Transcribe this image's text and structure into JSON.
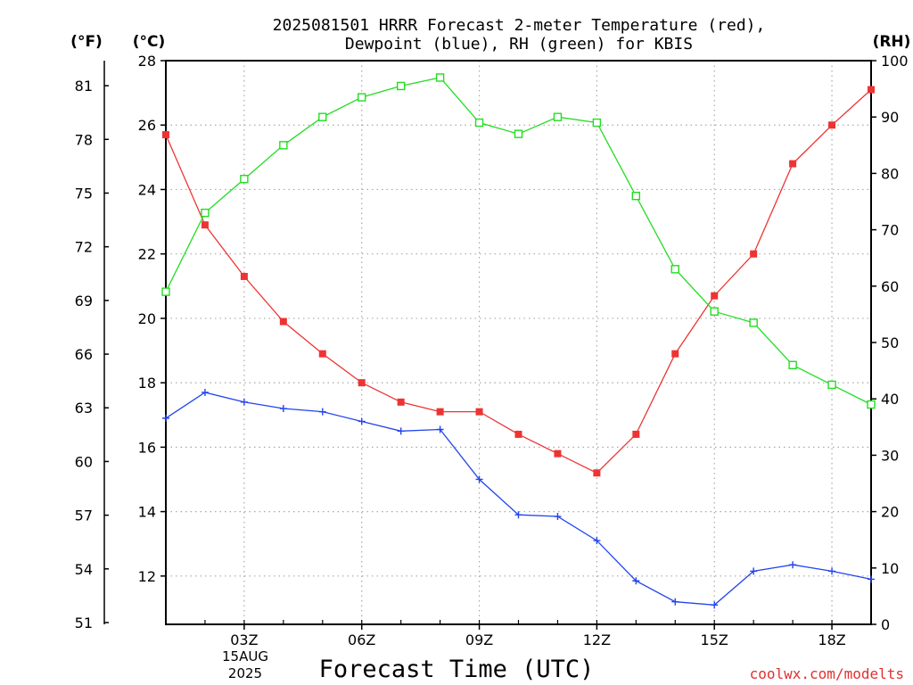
{
  "chart_data": {
    "type": "line",
    "title_lines": [
      "2025081501 HRRR Forecast 2-meter Temperature (red),",
      "Dewpoint (blue), RH (green) for KBIS"
    ],
    "xlabel": "Forecast Time (UTC)",
    "date_label": [
      "15AUG",
      "2025"
    ],
    "credit": "coolwx.com/modelts",
    "units": {
      "fahrenheit": "(°F)",
      "celsius": "(°C)",
      "rh": "(RH)"
    },
    "x_hours": [
      1,
      2,
      3,
      4,
      5,
      6,
      7,
      8,
      9,
      10,
      11,
      12,
      13,
      14,
      15,
      16,
      17,
      18,
      19
    ],
    "xlim": [
      1,
      19
    ],
    "x_ticks": [
      {
        "hour": 3,
        "label": "03Z"
      },
      {
        "hour": 6,
        "label": "06Z"
      },
      {
        "hour": 9,
        "label": "09Z"
      },
      {
        "hour": 12,
        "label": "12Z"
      },
      {
        "hour": 15,
        "label": "15Z"
      },
      {
        "hour": 18,
        "label": "18Z"
      }
    ],
    "celsius_axis": {
      "range": [
        10.5,
        28
      ],
      "ticks": [
        "12",
        "14",
        "16",
        "18",
        "20",
        "22",
        "24",
        "26",
        "28"
      ]
    },
    "fahrenheit_axis": {
      "ticks": [
        "51",
        "54",
        "57",
        "60",
        "63",
        "66",
        "69",
        "72",
        "75",
        "78",
        "81"
      ]
    },
    "rh_axis": {
      "range": [
        0,
        100
      ],
      "ticks": [
        "0",
        "10",
        "20",
        "30",
        "40",
        "50",
        "60",
        "70",
        "80",
        "90",
        "100"
      ]
    },
    "grid": true,
    "series": [
      {
        "key": "temperature",
        "axis": "celsius",
        "color": "#ee3333",
        "marker": "filled-square",
        "values": [
          25.7,
          22.9,
          21.3,
          19.9,
          18.9,
          18.0,
          17.4,
          17.1,
          17.1,
          16.4,
          15.8,
          15.2,
          16.4,
          18.9,
          20.7,
          22.0,
          24.8,
          26.0,
          27.1
        ]
      },
      {
        "key": "dewpoint",
        "axis": "celsius",
        "color": "#2244ee",
        "marker": "plus",
        "values": [
          16.9,
          17.7,
          17.4,
          17.2,
          17.1,
          16.8,
          16.5,
          16.55,
          15.0,
          13.9,
          13.85,
          13.1,
          11.85,
          11.2,
          11.1,
          12.15,
          12.35,
          12.15,
          11.9
        ]
      },
      {
        "key": "rh",
        "axis": "rh",
        "color": "#22dd22",
        "marker": "open-square",
        "values": [
          59,
          73,
          79,
          85,
          90,
          93.5,
          95.5,
          97,
          89,
          87,
          90,
          89,
          76,
          63,
          55.5,
          53.5,
          46,
          42.5,
          39
        ]
      }
    ]
  }
}
